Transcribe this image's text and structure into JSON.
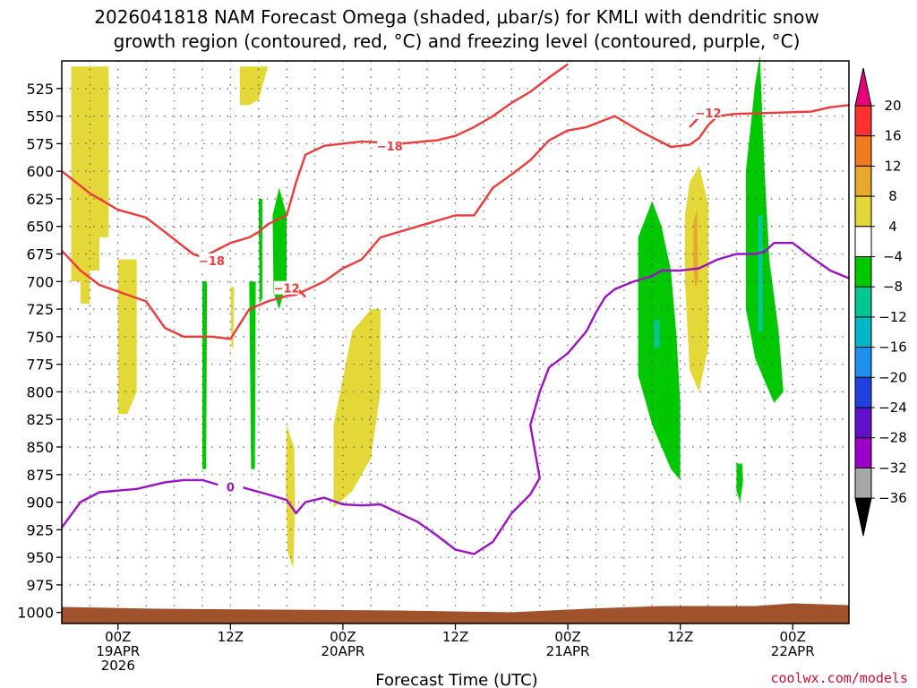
{
  "chart_data": {
    "type": "heatmap",
    "title_line1": "2026041818 NAM Forecast Omega (shaded, μbar/s) for KMLI with dendritic snow",
    "title_line2": "growth region (contoured, red, °C) and freezing level (contoured, purple, °C)",
    "xlabel": "Forecast Time (UTC)",
    "ylabel": "",
    "xlim_hours": [
      0,
      84
    ],
    "ylim_hPa": [
      1010,
      500
    ],
    "y_ticks": [
      "525",
      "550",
      "575",
      "600",
      "625",
      "650",
      "675",
      "700",
      "725",
      "750",
      "775",
      "800",
      "825",
      "850",
      "875",
      "900",
      "925",
      "950",
      "975",
      "1000"
    ],
    "x_ticks": [
      {
        "hour": 6,
        "line1": "00Z",
        "line2": "19APR",
        "line3": "2026"
      },
      {
        "hour": 18,
        "line1": "12Z",
        "line2": "",
        "line3": ""
      },
      {
        "hour": 30,
        "line1": "00Z",
        "line2": "20APR",
        "line3": ""
      },
      {
        "hour": 42,
        "line1": "12Z",
        "line2": "",
        "line3": ""
      },
      {
        "hour": 54,
        "line1": "00Z",
        "line2": "21APR",
        "line3": ""
      },
      {
        "hour": 66,
        "line1": "12Z",
        "line2": "",
        "line3": ""
      },
      {
        "hour": 78,
        "line1": "00Z",
        "line2": "22APR",
        "line3": ""
      }
    ],
    "colorbar": {
      "labels": [
        "20",
        "16",
        "12",
        "8",
        "4",
        "−4",
        "−8",
        "−12",
        "−16",
        "−20",
        "−24",
        "−28",
        "−32",
        "−36"
      ],
      "colors": [
        "#ff3030",
        "#f07a20",
        "#e8a830",
        "#e4d838",
        "#ffffff",
        "#00c800",
        "#00c890",
        "#00b8c8",
        "#2090f0",
        "#2040e0",
        "#6010c8",
        "#9a00c8",
        "#a8a8a8"
      ],
      "top_arrow_color": "#e8007a",
      "bottom_arrow_color": "#000000"
    },
    "series": [
      {
        "name": "dendritic growth region -18°C upper",
        "color": "#ee3a3a",
        "label": "−18",
        "points": [
          [
            0,
            600
          ],
          [
            3,
            620
          ],
          [
            6,
            635
          ],
          [
            9,
            642
          ],
          [
            11,
            655
          ],
          [
            14,
            675
          ],
          [
            15,
            678
          ],
          [
            18,
            665
          ],
          [
            20,
            660
          ],
          [
            21,
            655
          ],
          [
            22,
            648
          ],
          [
            24,
            640
          ],
          [
            25,
            610
          ],
          [
            26,
            585
          ],
          [
            28,
            577
          ],
          [
            32,
            573
          ],
          [
            36,
            575
          ],
          [
            40,
            572
          ],
          [
            42,
            568
          ],
          [
            44,
            560
          ],
          [
            46,
            550
          ],
          [
            48,
            538
          ],
          [
            50,
            528
          ],
          [
            52,
            515
          ],
          [
            54,
            503
          ]
        ],
        "label_at": [
          16,
          681
        ]
      },
      {
        "name": "dendritic growth region -18°C lower",
        "color": "#ee3a3a",
        "label": "−18",
        "points": [
          [
            0,
            672
          ],
          [
            2,
            690
          ],
          [
            4,
            703
          ],
          [
            7,
            712
          ],
          [
            9,
            718
          ],
          [
            11,
            742
          ],
          [
            13,
            750
          ],
          [
            16,
            750
          ],
          [
            18,
            752
          ],
          [
            20,
            725
          ],
          [
            22,
            718
          ],
          [
            24,
            713
          ],
          [
            25,
            712
          ],
          [
            26,
            708
          ],
          [
            28,
            700
          ],
          [
            30,
            688
          ],
          [
            32,
            680
          ],
          [
            34,
            660
          ],
          [
            38,
            650
          ],
          [
            42,
            640
          ],
          [
            44,
            640
          ],
          [
            46,
            615
          ],
          [
            48,
            603
          ],
          [
            50,
            590
          ],
          [
            52,
            572
          ],
          [
            54,
            563
          ],
          [
            56,
            560
          ],
          [
            59,
            550
          ],
          [
            62,
            565
          ],
          [
            65,
            578
          ],
          [
            67,
            576
          ],
          [
            68,
            570
          ],
          [
            69,
            558
          ],
          [
            70,
            550
          ],
          [
            72,
            548
          ],
          [
            76,
            547
          ],
          [
            80,
            546
          ],
          [
            82,
            542
          ],
          [
            84,
            540
          ]
        ],
        "label_at": [
          35,
          577
        ]
      },
      {
        "name": "-12°C marker near 20APR 07Z",
        "color": "#ee3a3a",
        "label": "−12",
        "points": [
          [
            24,
            703
          ],
          [
            25,
            705
          ],
          [
            26,
            714
          ]
        ],
        "label_at": [
          24,
          706
        ]
      },
      {
        "name": "-12°C marker near 21APR 14Z",
        "color": "#ee3a3a",
        "label": "−12",
        "points": [
          [
            67,
            560
          ],
          [
            68,
            551
          ]
        ],
        "label_at": [
          69,
          547
        ]
      },
      {
        "name": "freezing level 0°C",
        "color": "#9a12c4",
        "label": "0",
        "points": [
          [
            0,
            923
          ],
          [
            2,
            900
          ],
          [
            4,
            891
          ],
          [
            8,
            888
          ],
          [
            11,
            882
          ],
          [
            13,
            880
          ],
          [
            15,
            880
          ],
          [
            17,
            885
          ],
          [
            19,
            886
          ],
          [
            22,
            893
          ],
          [
            24,
            898
          ],
          [
            25,
            910
          ],
          [
            26,
            900
          ],
          [
            28,
            896
          ],
          [
            30,
            902
          ],
          [
            32,
            903
          ],
          [
            34,
            902
          ],
          [
            36,
            910
          ],
          [
            38,
            918
          ],
          [
            40,
            930
          ],
          [
            42,
            943
          ],
          [
            44,
            947
          ],
          [
            46,
            936
          ],
          [
            48,
            910
          ],
          [
            50,
            893
          ],
          [
            51,
            878
          ],
          [
            50,
            830
          ],
          [
            51,
            800
          ],
          [
            52,
            778
          ],
          [
            54,
            765
          ],
          [
            56,
            745
          ],
          [
            57,
            728
          ],
          [
            58,
            714
          ],
          [
            59,
            707
          ],
          [
            61,
            700
          ],
          [
            63,
            695
          ],
          [
            64,
            690
          ],
          [
            66,
            690
          ],
          [
            68,
            688
          ],
          [
            70,
            680
          ],
          [
            72,
            675
          ],
          [
            74,
            675
          ],
          [
            75,
            673
          ],
          [
            76,
            665
          ],
          [
            78,
            665
          ],
          [
            80,
            678
          ],
          [
            82,
            690
          ],
          [
            84,
            697
          ]
        ],
        "label_at": [
          18,
          886
        ]
      }
    ],
    "omega_regions": [
      {
        "category": "4 to 8",
        "color": "#e4d838",
        "polygon": [
          [
            1,
            505
          ],
          [
            5,
            505
          ],
          [
            5,
            660
          ],
          [
            4,
            660
          ],
          [
            4,
            690
          ],
          [
            3,
            690
          ],
          [
            3,
            720
          ],
          [
            2,
            720
          ],
          [
            2,
            700
          ],
          [
            1,
            700
          ]
        ]
      },
      {
        "category": "4 to 8",
        "color": "#e4d838",
        "polygon": [
          [
            6,
            680
          ],
          [
            8,
            680
          ],
          [
            8,
            800
          ],
          [
            7,
            820
          ],
          [
            6,
            820
          ],
          [
            6,
            770
          ]
        ]
      },
      {
        "category": "4 to 8",
        "color": "#e4d838",
        "polygon": [
          [
            19,
            505
          ],
          [
            22,
            505
          ],
          [
            21,
            535
          ],
          [
            20,
            540
          ],
          [
            19,
            540
          ]
        ]
      },
      {
        "category": "4 to 8",
        "color": "#e4d838",
        "polygon": [
          [
            18,
            705
          ],
          [
            18.4,
            705
          ],
          [
            18.3,
            760
          ],
          [
            18.1,
            760
          ]
        ]
      },
      {
        "category": "4 to 8",
        "color": "#e4d838",
        "polygon": [
          [
            24,
            830
          ],
          [
            24.8,
            850
          ],
          [
            24.9,
            905
          ],
          [
            24.7,
            960
          ],
          [
            24.1,
            945
          ],
          [
            23.9,
            880
          ]
        ]
      },
      {
        "category": "4 to 8",
        "color": "#e4d838",
        "polygon": [
          [
            29,
            830
          ],
          [
            31,
            745
          ],
          [
            33,
            725
          ],
          [
            34,
            725
          ],
          [
            34,
            800
          ],
          [
            33,
            860
          ],
          [
            31,
            890
          ],
          [
            29,
            905
          ],
          [
            29,
            870
          ]
        ]
      },
      {
        "category": "4 to 8",
        "color": "#e4d838",
        "polygon": [
          [
            67,
            610
          ],
          [
            68,
            595
          ],
          [
            69,
            630
          ],
          [
            69,
            760
          ],
          [
            68,
            800
          ],
          [
            67,
            780
          ],
          [
            66.5,
            700
          ],
          [
            66.5,
            640
          ]
        ]
      },
      {
        "category": "8 to 12",
        "color": "#e8a830",
        "polygon": [
          [
            67.4,
            645
          ],
          [
            67.8,
            635
          ],
          [
            67.9,
            700
          ],
          [
            67.6,
            705
          ],
          [
            67.4,
            690
          ]
        ]
      },
      {
        "category": "-4 to -8",
        "color": "#00c800",
        "polygon": [
          [
            15,
            700
          ],
          [
            15.5,
            700
          ],
          [
            15.4,
            870
          ],
          [
            15,
            870
          ]
        ]
      },
      {
        "category": "-4 to -8",
        "color": "#00c800",
        "polygon": [
          [
            20,
            700
          ],
          [
            20.7,
            700
          ],
          [
            20.6,
            870
          ],
          [
            20.2,
            870
          ]
        ]
      },
      {
        "category": "-4 to -8",
        "color": "#00c800",
        "polygon": [
          [
            21,
            625
          ],
          [
            21.4,
            625
          ],
          [
            21.4,
            715
          ],
          [
            21.1,
            720
          ]
        ]
      },
      {
        "category": "-4 to -8",
        "color": "#00c800",
        "polygon": [
          [
            22.5,
            640
          ],
          [
            23.2,
            615
          ],
          [
            24,
            640
          ],
          [
            24,
            700
          ],
          [
            23.2,
            725
          ],
          [
            22.6,
            710
          ]
        ]
      },
      {
        "category": "-4 to -8",
        "color": "#00c800",
        "polygon": [
          [
            61.5,
            660
          ],
          [
            63,
            627
          ],
          [
            64,
            650
          ],
          [
            65,
            690
          ],
          [
            65.6,
            750
          ],
          [
            66,
            810
          ],
          [
            66,
            880
          ],
          [
            65,
            870
          ],
          [
            63,
            830
          ],
          [
            61.5,
            785
          ]
        ]
      },
      {
        "category": "-4 to -8",
        "color": "#00c800",
        "polygon": [
          [
            73,
            600
          ],
          [
            74,
            520
          ],
          [
            74.5,
            495
          ],
          [
            75,
            600
          ],
          [
            75.5,
            680
          ],
          [
            76.5,
            745
          ],
          [
            77,
            800
          ],
          [
            76,
            810
          ],
          [
            74,
            770
          ],
          [
            73,
            725
          ]
        ]
      },
      {
        "category": "-4 to -8",
        "color": "#00c800",
        "polygon": [
          [
            72,
            865
          ],
          [
            72.6,
            865
          ],
          [
            72.7,
            880
          ],
          [
            72.4,
            900
          ],
          [
            72,
            890
          ]
        ]
      },
      {
        "category": "-8 to -12",
        "color": "#00c890",
        "polygon": [
          [
            63.2,
            735
          ],
          [
            63.8,
            735
          ],
          [
            63.8,
            760
          ],
          [
            63.2,
            760
          ]
        ]
      },
      {
        "category": "-8 to -12",
        "color": "#00c890",
        "polygon": [
          [
            74.3,
            640
          ],
          [
            74.8,
            640
          ],
          [
            74.8,
            745
          ],
          [
            74.3,
            745
          ]
        ]
      }
    ],
    "surface_band": {
      "color": "#a0522d",
      "top_hPa": 995
    }
  },
  "credit": "coolwx.com/models",
  "credit_color": "#c8103c"
}
